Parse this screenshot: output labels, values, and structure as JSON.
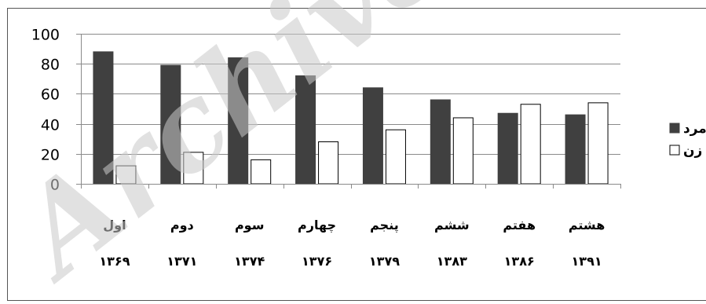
{
  "chart_data": {
    "type": "bar",
    "categories": [
      {
        "name": "اول",
        "year": "۱۳۶۹"
      },
      {
        "name": "دوم",
        "year": "۱۳۷۱"
      },
      {
        "name": "سوم",
        "year": "۱۳۷۴"
      },
      {
        "name": "چهارم",
        "year": "۱۳۷۶"
      },
      {
        "name": "پنجم",
        "year": "۱۳۷۹"
      },
      {
        "name": "ششم",
        "year": "۱۳۸۳"
      },
      {
        "name": "هفتم",
        "year": "۱۳۸۶"
      },
      {
        "name": "هشتم",
        "year": "۱۳۹۱"
      }
    ],
    "series": [
      {
        "name": "مرد",
        "color": "#404040",
        "values": [
          88,
          79,
          84,
          72,
          64,
          56,
          47,
          46
        ]
      },
      {
        "name": "زن",
        "color": "#ffffff",
        "values": [
          12,
          21,
          16,
          28,
          36,
          44,
          53,
          54
        ]
      }
    ],
    "yticks": [
      "0",
      "20",
      "40",
      "60",
      "80",
      "100"
    ],
    "ylim": [
      0,
      100
    ],
    "grid": true,
    "legend_position": "right"
  },
  "watermark": "Archive"
}
